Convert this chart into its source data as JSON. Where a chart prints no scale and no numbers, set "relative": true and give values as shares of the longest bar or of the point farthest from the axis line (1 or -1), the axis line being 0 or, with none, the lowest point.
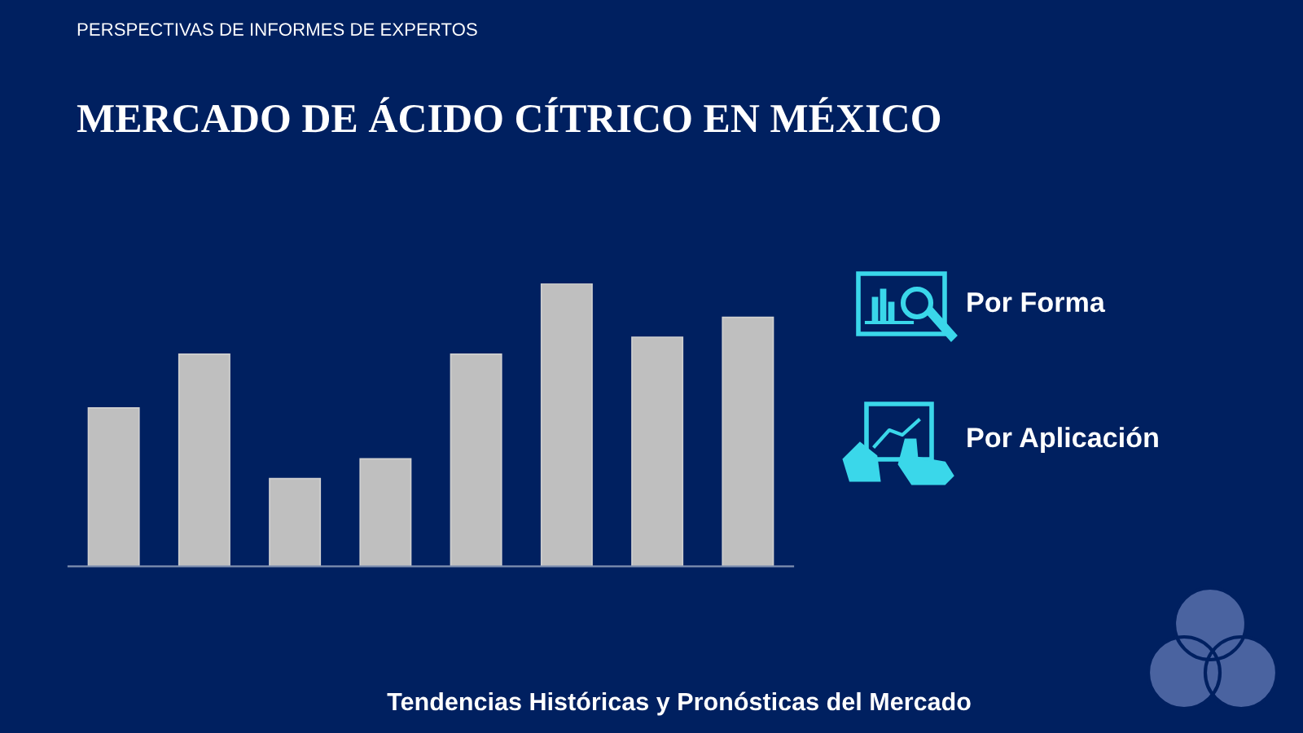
{
  "chart_data": {
    "type": "bar",
    "title": "MERCADO DE ÁCIDO CÍTRICO EN MÉXICO",
    "categories": [
      null,
      null,
      null,
      null,
      null,
      null,
      null,
      null
    ],
    "values": [
      0.56,
      0.75,
      0.31,
      0.38,
      0.75,
      1,
      0.81,
      0.88
    ],
    "color": "#bfbfbf",
    "relative": true,
    "annotations": [
      "PERSPECTIVAS DE INFORMES DE EXPERTOS",
      "Por Forma",
      "Por Aplicación",
      "Tendencias Históricas y Pronósticas del Mercado"
    ]
  }
}
